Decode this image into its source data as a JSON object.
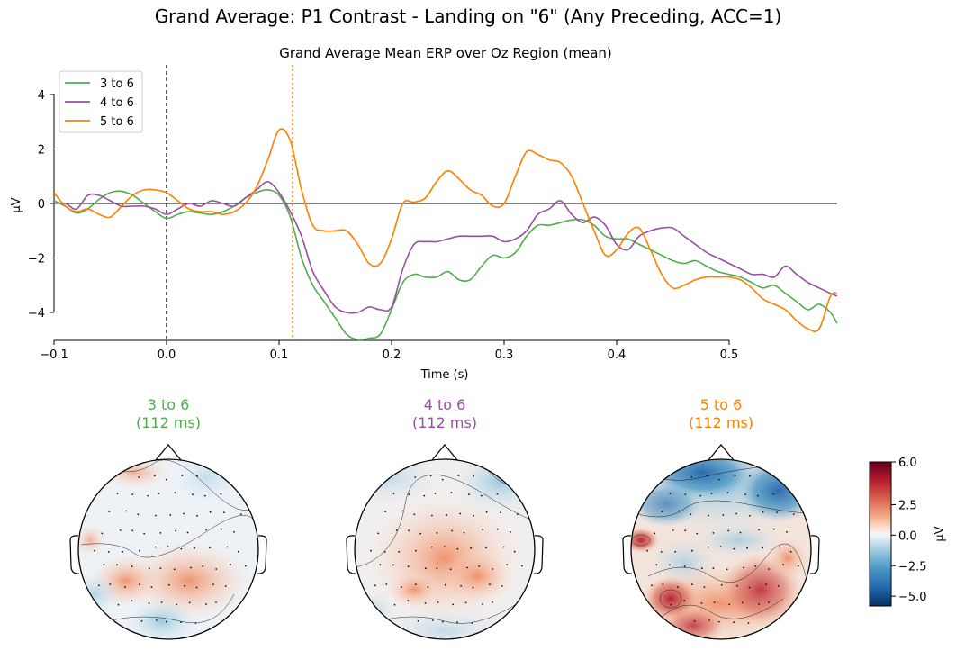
{
  "suptitle": "Grand Average: P1 Contrast - Landing on \"6\" (Any Preceding, ACC=1)",
  "chart_data": [
    {
      "type": "line",
      "title": "Grand Average Mean ERP over Oz Region (mean)",
      "xlabel": "Time (s)",
      "ylabel": "µV",
      "xlim": [
        -0.1,
        0.6
      ],
      "ylim": [
        -5,
        5
      ],
      "xticks": [
        "−0.1",
        "0.0",
        "0.1",
        "0.2",
        "0.3",
        "0.4",
        "0.5"
      ],
      "yticks": [
        "−4",
        "−2",
        "0",
        "2",
        "4"
      ],
      "legend_position": "top-left",
      "vlines": [
        {
          "x": 0.0,
          "style": "dashed",
          "color": "#000000"
        },
        {
          "x": 0.112,
          "style": "dotted",
          "color": "#ff7f00"
        }
      ],
      "hline": {
        "y": 0
      },
      "x": [
        -0.1,
        -0.09,
        -0.08,
        -0.07,
        -0.06,
        -0.05,
        -0.04,
        -0.03,
        -0.02,
        -0.01,
        0.0,
        0.01,
        0.02,
        0.03,
        0.04,
        0.05,
        0.06,
        0.07,
        0.08,
        0.09,
        0.1,
        0.11,
        0.12,
        0.13,
        0.14,
        0.15,
        0.16,
        0.17,
        0.18,
        0.19,
        0.2,
        0.21,
        0.22,
        0.23,
        0.24,
        0.25,
        0.26,
        0.27,
        0.28,
        0.29,
        0.3,
        0.31,
        0.32,
        0.33,
        0.34,
        0.35,
        0.36,
        0.37,
        0.38,
        0.39,
        0.4,
        0.41,
        0.42,
        0.43,
        0.44,
        0.45,
        0.46,
        0.47,
        0.48,
        0.49,
        0.5,
        0.51,
        0.52,
        0.53,
        0.54,
        0.55,
        0.56,
        0.57,
        0.58,
        0.59,
        0.596
      ],
      "series": [
        {
          "name": "3 to 6",
          "color": "#4daf4a",
          "values": [
            0.1,
            -0.1,
            -0.35,
            -0.2,
            0.15,
            0.4,
            0.45,
            0.3,
            0.0,
            -0.3,
            -0.55,
            -0.4,
            -0.3,
            -0.35,
            -0.4,
            -0.3,
            -0.1,
            0.2,
            0.4,
            0.5,
            0.3,
            -0.5,
            -2.0,
            -3.0,
            -3.6,
            -4.2,
            -4.8,
            -5.0,
            -4.95,
            -4.8,
            -3.9,
            -2.9,
            -2.6,
            -2.7,
            -2.7,
            -2.5,
            -2.8,
            -2.8,
            -2.3,
            -1.9,
            -2.0,
            -1.8,
            -1.2,
            -0.8,
            -0.8,
            -0.7,
            -0.6,
            -0.6,
            -0.8,
            -1.2,
            -1.3,
            -1.3,
            -1.5,
            -1.7,
            -1.9,
            -2.1,
            -2.2,
            -2.1,
            -2.3,
            -2.5,
            -2.6,
            -2.7,
            -2.9,
            -3.1,
            -3.0,
            -3.3,
            -3.6,
            -3.9,
            -3.7,
            -4.0,
            -4.4
          ]
        },
        {
          "name": "4 to 6",
          "color": "#984ea3",
          "values": [
            0.0,
            0.0,
            -0.2,
            0.3,
            0.3,
            0.1,
            -0.1,
            -0.1,
            -0.1,
            -0.2,
            -0.4,
            -0.2,
            0.0,
            -0.1,
            0.1,
            0.0,
            -0.1,
            0.2,
            0.5,
            0.8,
            0.4,
            -0.3,
            -1.2,
            -2.5,
            -3.2,
            -3.8,
            -4.0,
            -4.0,
            -3.8,
            -3.9,
            -3.8,
            -2.4,
            -1.5,
            -1.4,
            -1.4,
            -1.3,
            -1.2,
            -1.2,
            -1.2,
            -1.2,
            -1.4,
            -1.3,
            -1.0,
            -0.4,
            -0.2,
            0.1,
            -0.4,
            -0.7,
            -0.5,
            -0.8,
            -1.5,
            -1.7,
            -1.2,
            -1.0,
            -0.9,
            -0.9,
            -1.2,
            -1.5,
            -1.8,
            -2.0,
            -2.2,
            -2.4,
            -2.6,
            -2.6,
            -2.7,
            -2.3,
            -2.6,
            -2.9,
            -3.1,
            -3.3,
            -3.4
          ]
        },
        {
          "name": "5 to 6",
          "color": "#ff7f00",
          "values": [
            0.4,
            -0.1,
            -0.3,
            -0.2,
            -0.4,
            -0.5,
            -0.1,
            0.3,
            0.5,
            0.5,
            0.4,
            0.1,
            -0.2,
            -0.3,
            -0.3,
            -0.4,
            -0.3,
            0.0,
            0.6,
            1.6,
            2.7,
            2.3,
            0.5,
            -0.8,
            -1.0,
            -1.0,
            -1.0,
            -1.5,
            -2.2,
            -2.2,
            -1.3,
            0.0,
            0.05,
            0.2,
            0.8,
            1.2,
            0.9,
            0.5,
            0.3,
            -0.1,
            0.0,
            1.0,
            1.9,
            1.8,
            1.6,
            1.5,
            1.0,
            0.0,
            -1.0,
            -1.9,
            -1.7,
            -1.1,
            -0.9,
            -1.7,
            -2.6,
            -3.1,
            -3.0,
            -2.8,
            -2.7,
            -2.7,
            -2.7,
            -2.8,
            -3.1,
            -3.5,
            -3.7,
            -3.9,
            -4.3,
            -4.6,
            -4.6,
            -3.4,
            -3.3
          ]
        }
      ]
    },
    {
      "type": "heatmap",
      "subplots": [
        {
          "label": "3 to 6\n(112 ms)",
          "label_line1": "3 to 6",
          "label_line2": "(112 ms)",
          "color": "#4daf4a"
        },
        {
          "label": "4 to 6\n(112 ms)",
          "label_line1": "4 to 6",
          "label_line2": "(112 ms)",
          "color": "#984ea3"
        },
        {
          "label": "5 to 6\n(112 ms)",
          "label_line1": "5 to 6",
          "label_line2": "(112 ms)",
          "color": "#ff7f00"
        }
      ],
      "colorbar": {
        "label": "µV",
        "range": [
          -5.8,
          6.0
        ],
        "ticks": [
          "6.0",
          "2.5",
          "0.0",
          "−2.5",
          "−5.0"
        ],
        "colormap": "RdBu_r"
      }
    }
  ]
}
